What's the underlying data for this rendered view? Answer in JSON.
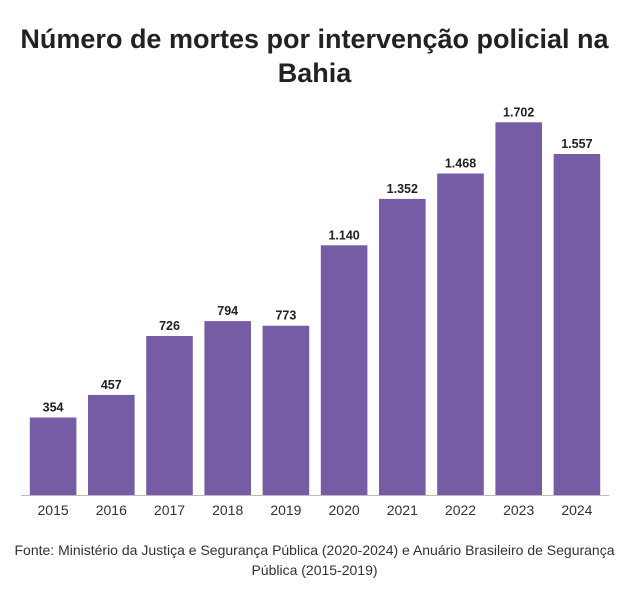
{
  "colors": {
    "bar": "#765ca4",
    "axis": "#bbbbbb",
    "text": "#222222"
  },
  "chart_data": {
    "type": "bar",
    "title": "Número de mortes por intervenção policial na Bahia",
    "categories": [
      "2015",
      "2016",
      "2017",
      "2018",
      "2019",
      "2020",
      "2021",
      "2022",
      "2023",
      "2024"
    ],
    "values": [
      354,
      457,
      726,
      794,
      773,
      1140,
      1352,
      1468,
      1702,
      1557
    ],
    "value_labels": [
      "354",
      "457",
      "726",
      "794",
      "773",
      "1.140",
      "1.352",
      "1.468",
      "1.702",
      "1.557"
    ],
    "ylim": [
      0,
      1790
    ],
    "grid": false,
    "source": "Fonte: Ministério da Justiça e Segurança Pública (2020-2024) e Anuário Brasileiro de Segurança Pública (2015-2019)"
  }
}
